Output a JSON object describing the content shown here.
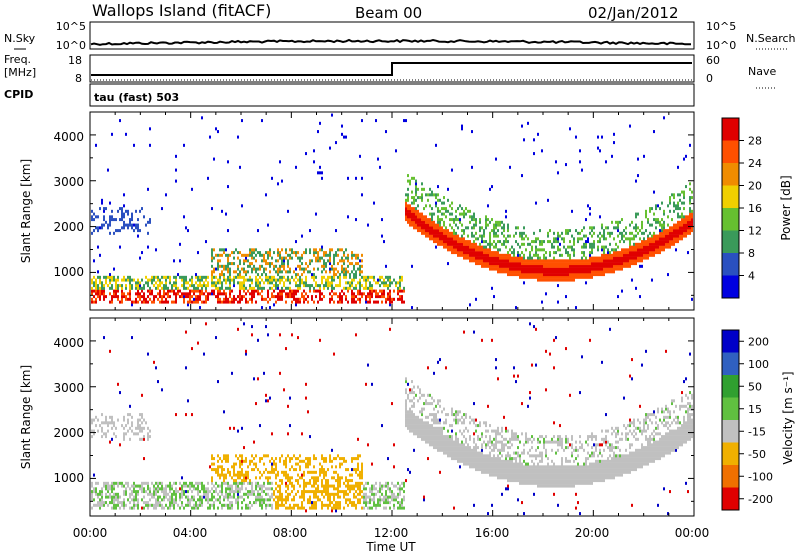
{
  "header": {
    "title": "Wallops Island (fitACF)",
    "beam": "Beam 00",
    "date": "02/Jan/2012"
  },
  "strips": {
    "nsky_label": "N.Sky",
    "nsearch_label": "N.Search",
    "noise_ticks_left": [
      "10^5",
      "10^0"
    ],
    "noise_ticks_right": [
      "10^5",
      "10^0"
    ],
    "freq_label_line1": "Freq.",
    "freq_label_line2": "[MHz]",
    "freq_ticks": [
      "18",
      "8"
    ],
    "nave_label": "Nave",
    "nave_ticks": [
      "60",
      "0"
    ],
    "cpid_label": "CPID",
    "cpid_value": "tau (fast) 503"
  },
  "chart_data": [
    {
      "type": "heatmap",
      "name": "power-panel",
      "ylabel": "Slant Range [km]",
      "yticks": [
        "1000",
        "2000",
        "3000",
        "4000"
      ],
      "ylim": [
        180,
        4500
      ],
      "colorbar_label": "Power [dB]",
      "colorbar_ticks": [
        "28",
        "24",
        "20",
        "16",
        "12",
        "8",
        "4"
      ],
      "colors": [
        "#e00000",
        "#ff5000",
        "#f08c00",
        "#f0d000",
        "#66c030",
        "#3a9a5a",
        "#2a50c0",
        "#0000e0"
      ]
    },
    {
      "type": "heatmap",
      "name": "velocity-panel",
      "ylabel": "Slant Range [km]",
      "yticks": [
        "1000",
        "2000",
        "3000",
        "4000"
      ],
      "ylim": [
        180,
        4500
      ],
      "colorbar_label": "Velocity [m s⁻¹]",
      "colorbar_ticks": [
        "200",
        "100",
        "50",
        "15",
        "-15",
        "-50",
        "-100",
        "-200"
      ],
      "colors": [
        "#0000c8",
        "#3060c0",
        "#30a030",
        "#60c040",
        "#c0c0c0",
        "#f0b000",
        "#f07000",
        "#e00000"
      ]
    }
  ],
  "xaxis": {
    "label": "Time UT",
    "ticks": [
      "00:00",
      "04:00",
      "08:00",
      "12:00",
      "16:00",
      "20:00",
      "00:00"
    ]
  }
}
